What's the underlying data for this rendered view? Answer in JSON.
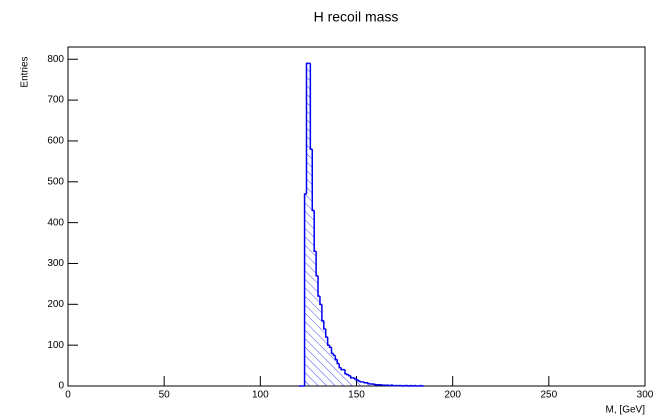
{
  "chart_data": {
    "type": "histogram",
    "title": "H recoil mass",
    "x_label": "M, [GeV]",
    "y_label": "Entries",
    "bins": [
      120,
      121,
      122,
      123,
      124,
      125,
      126,
      127,
      128,
      129,
      130,
      131,
      132,
      133,
      134,
      135,
      136,
      137,
      138,
      139,
      140,
      141,
      142,
      143,
      144,
      145,
      146,
      147,
      148,
      149,
      150,
      151,
      152,
      153,
      154,
      155,
      156,
      157,
      158,
      159,
      160,
      161,
      162,
      163,
      164,
      165,
      166,
      167,
      168,
      169,
      170,
      171,
      172,
      173,
      174,
      175,
      176,
      177,
      178,
      179,
      180,
      181,
      182,
      183,
      184,
      185
    ],
    "counts": [
      0,
      0,
      0,
      470,
      790,
      790,
      580,
      430,
      330,
      270,
      220,
      200,
      160,
      140,
      120,
      100,
      95,
      80,
      75,
      65,
      55,
      45,
      40,
      40,
      30,
      28,
      25,
      20,
      20,
      18,
      15,
      12,
      10,
      10,
      8,
      8,
      6,
      5,
      5,
      4,
      3,
      3,
      3,
      2,
      2,
      2,
      2,
      1,
      2,
      1,
      1,
      1,
      1,
      1,
      0,
      1,
      1,
      0,
      1,
      0,
      1,
      0,
      0,
      1,
      0
    ],
    "color": "#0000ee",
    "xlim": [
      0,
      300
    ],
    "xticks": [
      0,
      50,
      100,
      150,
      200,
      250,
      300
    ],
    "ylim": [
      0,
      830
    ],
    "yticks": [
      0,
      100,
      200,
      300,
      400,
      500,
      600,
      700,
      800
    ]
  }
}
